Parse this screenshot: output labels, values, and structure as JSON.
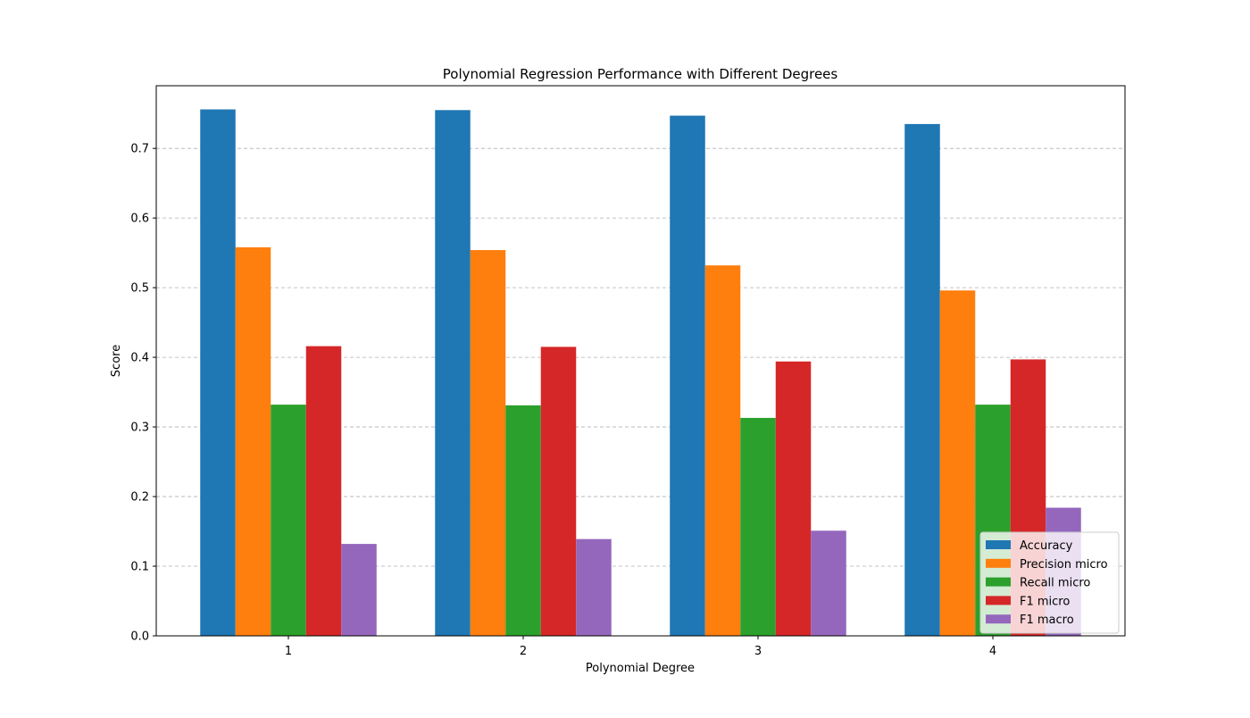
{
  "chart_data": {
    "type": "bar",
    "title": "Polynomial Regression Performance with Different Degrees",
    "xlabel": "Polynomial Degree",
    "ylabel": "Score",
    "categories": [
      "1",
      "2",
      "3",
      "4"
    ],
    "ylim": [
      0,
      0.79
    ],
    "yticks": [
      "0.0",
      "0.1",
      "0.2",
      "0.3",
      "0.4",
      "0.5",
      "0.6",
      "0.7"
    ],
    "grid": "y-axis dashed",
    "legend_position": "bottom-right",
    "series": [
      {
        "name": "Accuracy",
        "color": "#1f77b4",
        "values": [
          0.756,
          0.755,
          0.747,
          0.735
        ]
      },
      {
        "name": "Precision micro",
        "color": "#ff7f0e",
        "values": [
          0.558,
          0.554,
          0.532,
          0.496
        ]
      },
      {
        "name": "Recall micro",
        "color": "#2ca02c",
        "values": [
          0.332,
          0.331,
          0.313,
          0.332
        ]
      },
      {
        "name": "F1 micro",
        "color": "#d62728",
        "values": [
          0.416,
          0.415,
          0.394,
          0.397
        ]
      },
      {
        "name": "F1 macro",
        "color": "#9467bd",
        "values": [
          0.132,
          0.139,
          0.151,
          0.184
        ]
      }
    ]
  }
}
